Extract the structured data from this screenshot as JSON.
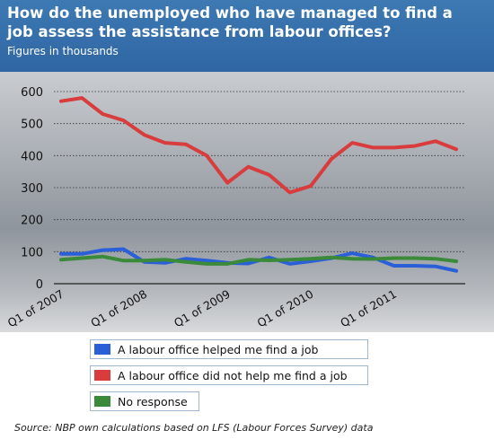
{
  "header": {
    "title": "How do the unemployed who have managed to find a job assess the assistance from labour offices?",
    "subtitle": "Figures in thousands"
  },
  "source": "Source: NBP own calculations based on LFS (Labour Forces Survey) data",
  "chart_data": {
    "type": "line",
    "ylim": [
      0,
      600
    ],
    "yticks": [
      0,
      100,
      200,
      300,
      400,
      500,
      600
    ],
    "xtick_labels": [
      "Q1 of 2007",
      "Q1 of 2008",
      "Q1 of 2009",
      "Q1 of 2010",
      "Q1 of 2011"
    ],
    "xtick_index": [
      0,
      4,
      8,
      12,
      16
    ],
    "grid": true,
    "legend_position": "bottom",
    "series": [
      {
        "name": "A labour office helped me find a job",
        "color": "#2a5fd8",
        "values": [
          93,
          93,
          105,
          108,
          68,
          65,
          78,
          72,
          65,
          63,
          82,
          62,
          70,
          80,
          95,
          82,
          56,
          56,
          54,
          40
        ]
      },
      {
        "name": "A labour office did not help me find a job",
        "color": "#d83c3c",
        "values": [
          570,
          580,
          530,
          510,
          465,
          440,
          435,
          400,
          315,
          365,
          340,
          285,
          305,
          390,
          440,
          425,
          425,
          430,
          445,
          420
        ]
      },
      {
        "name": "No response",
        "color": "#3a8a3a",
        "values": [
          75,
          80,
          85,
          72,
          72,
          75,
          68,
          62,
          62,
          75,
          73,
          75,
          78,
          82,
          78,
          77,
          80,
          80,
          78,
          70
        ]
      }
    ]
  }
}
